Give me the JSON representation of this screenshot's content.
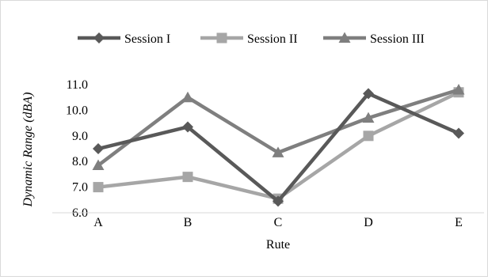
{
  "chart_data": {
    "type": "line",
    "categories": [
      "A",
      "B",
      "C",
      "D",
      "E"
    ],
    "series": [
      {
        "name": "Session I",
        "values": [
          8.5,
          9.35,
          6.45,
          10.65,
          9.1
        ],
        "color": "#595959",
        "marker": "diamond"
      },
      {
        "name": "Session II",
        "values": [
          7.0,
          7.4,
          6.55,
          9.0,
          10.7
        ],
        "color": "#a6a6a6",
        "marker": "square"
      },
      {
        "name": "Session III",
        "values": [
          7.85,
          10.5,
          8.35,
          9.7,
          10.8
        ],
        "color": "#7f7f7f",
        "marker": "triangle"
      }
    ],
    "xlabel": "Rute",
    "ylabel": "Dynamic Range (dBA)",
    "ylim": [
      6.0,
      11.0
    ],
    "yticks": [
      "6.0",
      "7.0",
      "8.0",
      "9.0",
      "10.0",
      "11.0"
    ],
    "grid": false,
    "legend_position": "top"
  }
}
